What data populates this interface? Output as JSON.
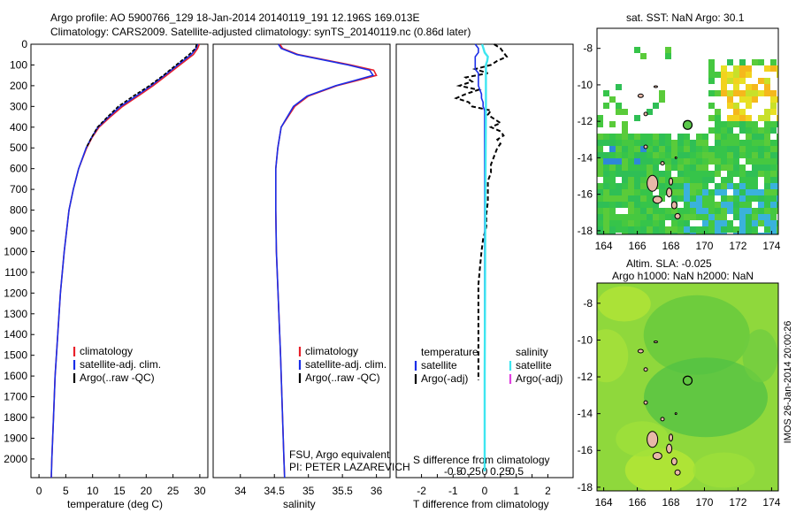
{
  "header": {
    "line1": "Argo profile: AO 5900766_129 18-Jan-2014 20140119_191 12.196S 169.013E",
    "line2": "Climatology: CARS2009. Satellite-adjusted climatology: synTS_20140119.nc (0.86d later)"
  },
  "colors": {
    "climatology": "#e8202a",
    "satellite": "#1a2ee8",
    "argo": "#000000",
    "sat_salinity": "#3ee6f0",
    "argo_salinity_adj": "#e040e0"
  },
  "chart_data": [
    {
      "type": "line",
      "title": "",
      "xlabel": "temperature (deg C)",
      "ylabel": "",
      "xlim": [
        -1.5,
        31.5
      ],
      "ylim": [
        2090,
        0
      ],
      "xticks": [
        "0",
        "5",
        "10",
        "15",
        "20",
        "25",
        "30"
      ],
      "yticks": [
        "0",
        "100",
        "200",
        "300",
        "400",
        "500",
        "600",
        "700",
        "800",
        "900",
        "1000",
        "1100",
        "1200",
        "1300",
        "1400",
        "1500",
        "1600",
        "1700",
        "1800",
        "1900",
        "2000"
      ],
      "depth": [
        0,
        20,
        50,
        100,
        150,
        200,
        250,
        300,
        350,
        400,
        450,
        500,
        600,
        700,
        800,
        1000,
        1200,
        1400,
        1600,
        1800,
        2000,
        2090
      ],
      "series": [
        {
          "name": "climatology",
          "values": [
            29.9,
            29.6,
            28.8,
            26.3,
            23.8,
            21.3,
            18.5,
            15.6,
            13.3,
            11.2,
            9.9,
            8.9,
            7.4,
            6.4,
            5.6,
            4.7,
            4.0,
            3.5,
            3.0,
            2.7,
            2.4,
            2.3
          ]
        },
        {
          "name": "satellite-adj. clim.",
          "values": [
            29.6,
            29.3,
            28.4,
            25.9,
            23.4,
            20.9,
            18.1,
            15.2,
            13.0,
            11.0,
            9.8,
            8.8,
            7.4,
            6.4,
            5.6,
            4.7,
            4.0,
            3.5,
            3.0,
            2.7,
            2.4,
            2.3
          ]
        },
        {
          "name": "Argo(..raw -QC)",
          "values": [
            29.4,
            29.2,
            28.0,
            25.6,
            23.2,
            20.6,
            17.6,
            14.8,
            12.8,
            10.9,
            9.8,
            8.8,
            null,
            null,
            null,
            null,
            null,
            null,
            null,
            null,
            null,
            null
          ]
        }
      ],
      "legend": [
        "climatology",
        "satellite-adj. clim.",
        "Argo(..raw -QC)"
      ]
    },
    {
      "type": "line",
      "title": "",
      "xlabel": "salinity",
      "ylabel": "",
      "xlim": [
        33.6,
        36.2
      ],
      "ylim": [
        2090,
        0
      ],
      "xticks": [
        "34",
        "34.5",
        "35",
        "35.5",
        "36"
      ],
      "depth": [
        0,
        20,
        50,
        100,
        125,
        150,
        175,
        200,
        250,
        300,
        400,
        500,
        600,
        800,
        1000,
        1500,
        2000,
        2090
      ],
      "series": [
        {
          "name": "climatology",
          "values": [
            34.58,
            34.62,
            34.85,
            35.62,
            35.96,
            36.0,
            35.72,
            35.42,
            35.0,
            34.8,
            34.6,
            34.55,
            34.52,
            34.52,
            34.53,
            34.59,
            34.64,
            34.65
          ]
        },
        {
          "name": "satellite-adj. clim.",
          "values": [
            34.56,
            34.6,
            34.83,
            35.58,
            35.9,
            35.95,
            35.68,
            35.4,
            34.98,
            34.78,
            34.6,
            34.55,
            34.52,
            34.52,
            34.53,
            34.59,
            34.64,
            34.65
          ]
        }
      ],
      "legend": [
        "climatology",
        "satellite-adj. clim.",
        "Argo(..raw -QC)"
      ],
      "annotation": [
        "FSU, Argo equivalent",
        "PI: PETER LAZAREVICH"
      ]
    },
    {
      "type": "line",
      "title": "",
      "xlabel": "T difference from climatology",
      "ylabel": "",
      "xlim": [
        -2.8,
        2.8
      ],
      "ylim": [
        2090,
        0
      ],
      "xticks": [
        "-2",
        "-1.5",
        "-1",
        "-0.5",
        "0",
        "0.5",
        "1",
        "1.5",
        "2"
      ],
      "x2label": "S difference from climatology",
      "x2ticks": [
        "-0.5",
        "-0.25",
        "0",
        "0.25",
        "0.5"
      ],
      "depth": [
        0,
        20,
        40,
        60,
        80,
        100,
        120,
        140,
        160,
        180,
        200,
        220,
        240,
        260,
        280,
        300,
        320,
        340,
        360,
        380,
        400,
        420,
        440,
        460,
        480,
        500,
        540,
        580,
        620,
        660,
        700,
        760,
        820,
        880,
        940,
        1000,
        1080,
        1160,
        1240,
        1320,
        1400,
        1480,
        1540,
        1580,
        1620
      ],
      "series": [
        {
          "name": "Argo(-adj) temperature",
          "values": [
            0.3,
            0.5,
            0.6,
            0.7,
            0.4,
            0.2,
            -0.3,
            0.1,
            -0.6,
            -0.4,
            -0.8,
            -0.2,
            -0.6,
            -0.9,
            -0.5,
            -0.4,
            0.2,
            0.1,
            0.3,
            0.5,
            0.2,
            0.5,
            0.6,
            0.4,
            0.5,
            0.4,
            0.3,
            0.2,
            0.2,
            0.1,
            0.1,
            0.1,
            0.05,
            0.05,
            -0.05,
            -0.1,
            -0.15,
            -0.2,
            -0.2,
            -0.2,
            -0.2,
            -0.2,
            -0.2,
            -0.2,
            -0.2
          ]
        },
        {
          "name": "satellite temperature",
          "values": [
            -0.3,
            -0.2,
            -0.2,
            -0.3,
            -0.3,
            -0.3,
            -0.3,
            -0.2,
            -0.2,
            -0.2,
            -0.2,
            -0.15,
            -0.1,
            -0.1,
            -0.05,
            -0.05,
            0.0,
            0.0,
            0.0,
            0.0,
            0.0,
            0.0,
            0.0,
            0.0,
            0.0,
            0.0,
            0.0,
            0.0,
            0.0,
            0.0,
            0.0,
            0.0,
            0.0,
            0.0,
            0.0,
            0.0,
            0.0,
            0.0,
            0.0,
            0.0,
            0.0,
            0.0,
            0.0,
            0.0,
            0.0
          ]
        }
      ],
      "series_salinity": {
        "name": "satellite salinity",
        "depth": [
          0,
          20,
          40,
          60,
          80,
          100,
          140,
          200,
          300,
          500,
          800,
          1200,
          1600,
          2000,
          2060
        ],
        "values": [
          -0.04,
          -0.02,
          0.0,
          0.05,
          0.04,
          0.02,
          0.02,
          0.02,
          0.02,
          0.015,
          0.01,
          0.005,
          0.0,
          0.0,
          0.0
        ]
      },
      "legend_temperature": [
        "temperature",
        "satellite",
        "Argo(-adj)"
      ],
      "legend_salinity": [
        "salinity",
        "satellite",
        "Argo(-adj)"
      ]
    },
    {
      "type": "heatmap",
      "title": "sat. SST: NaN Argo: 30.1",
      "xlim": [
        163.6,
        174.4
      ],
      "ylim": [
        -18.2,
        -6.9
      ],
      "xticks": [
        "164",
        "166",
        "168",
        "170",
        "172",
        "174"
      ],
      "yticks": [
        "-8",
        "-10",
        "-12",
        "-14",
        "-16",
        "-18"
      ],
      "argo_marker": {
        "lon": 169.0,
        "lat": -12.2
      }
    },
    {
      "type": "heatmap",
      "title": "Altim. SLA: -0.025",
      "subtitle": "Argo h1000: NaN h2000: NaN",
      "xlim": [
        163.6,
        174.4
      ],
      "ylim": [
        -18.2,
        -6.9
      ],
      "xticks": [
        "164",
        "166",
        "168",
        "170",
        "172",
        "174"
      ],
      "yticks": [
        "-8",
        "-10",
        "-12",
        "-14",
        "-16",
        "-18"
      ],
      "argo_marker": {
        "lon": 169.0,
        "lat": -12.2
      }
    }
  ],
  "watermark": "IMOS 26-Jan-2014 20:00:26"
}
